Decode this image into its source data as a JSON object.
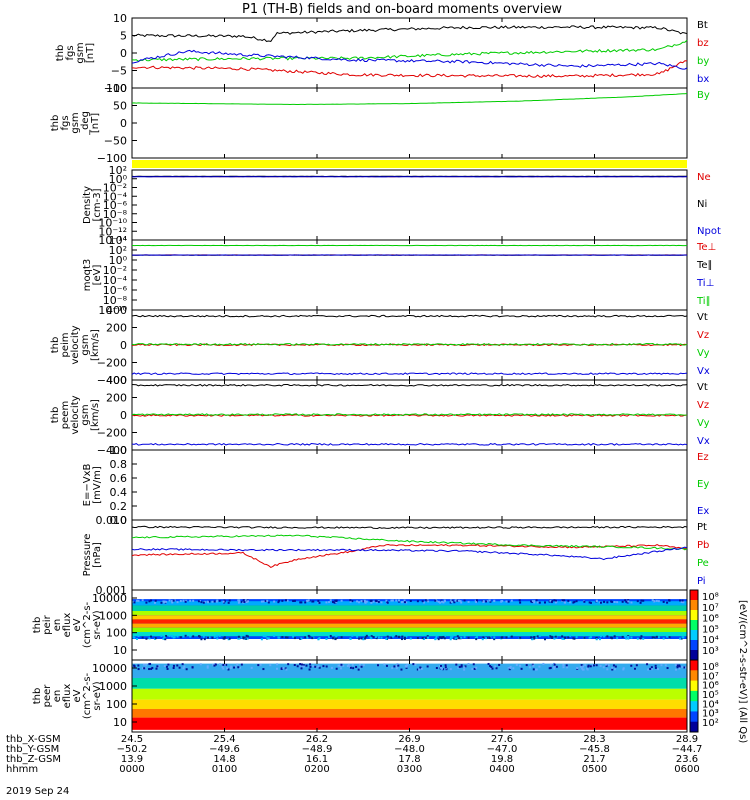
{
  "title": "P1 (TH-B) fields and on-board moments overview",
  "date_label": "2019 Sep 24",
  "colorbar_unit_label": "[eV/(cm^2-s-str-eV)] (All Qs)",
  "colors": {
    "black": "#000000",
    "red": "#e00000",
    "green": "#00cc00",
    "blue": "#0000dd",
    "yellow": "#ffff00"
  },
  "chart_data": [
    {
      "type": "line",
      "panel_id": "fgs",
      "ylabel": [
        "thb",
        "fgs",
        "gsm",
        "[nT]"
      ],
      "ylim": [
        -10,
        10
      ],
      "yticks": [
        "10",
        "5",
        "0",
        "−5",
        "−10"
      ],
      "series": [
        {
          "name": "Bt",
          "color": "black",
          "points": [
            [
              0,
              5
            ],
            [
              0.2,
              4.8
            ],
            [
              0.25,
              3.5
            ],
            [
              0.26,
              5.6
            ],
            [
              0.4,
              6.4
            ],
            [
              0.6,
              7.3
            ],
            [
              0.8,
              7.4
            ],
            [
              0.95,
              7.2
            ],
            [
              1,
              5.3
            ]
          ]
        },
        {
          "name": "bz",
          "color": "red",
          "points": [
            [
              0,
              -4
            ],
            [
              0.2,
              -4.5
            ],
            [
              0.4,
              -6.2
            ],
            [
              0.6,
              -6.5
            ],
            [
              0.8,
              -6.6
            ],
            [
              0.95,
              -6
            ],
            [
              1,
              -2
            ]
          ]
        },
        {
          "name": "by",
          "color": "green",
          "points": [
            [
              0,
              -2
            ],
            [
              0.2,
              -1.6
            ],
            [
              0.4,
              -1.5
            ],
            [
              0.6,
              -0.3
            ],
            [
              0.8,
              0.5
            ],
            [
              0.95,
              1
            ],
            [
              1,
              3.5
            ]
          ]
        },
        {
          "name": "bx",
          "color": "blue",
          "points": [
            [
              0,
              -2.5
            ],
            [
              0.1,
              0.5
            ],
            [
              0.2,
              -0.5
            ],
            [
              0.4,
              -2
            ],
            [
              0.6,
              -2.5
            ],
            [
              0.8,
              -3.8
            ],
            [
              0.95,
              -3
            ],
            [
              1,
              -4.5
            ]
          ]
        }
      ],
      "legend_position": "right"
    },
    {
      "type": "line",
      "panel_id": "fgs_deg",
      "ylabel": [
        "thb",
        "fgs",
        "gsm",
        "_deg",
        "[nT]"
      ],
      "ylim": [
        -125,
        100
      ],
      "yticks": [
        "100",
        "50",
        "0",
        "−50",
        "−100"
      ],
      "series": [
        {
          "name": "By",
          "color": "green",
          "points": [
            [
              0,
              52
            ],
            [
              0.3,
              47
            ],
            [
              0.5,
              50
            ],
            [
              0.7,
              58
            ],
            [
              0.9,
              72
            ],
            [
              1,
              82
            ]
          ]
        }
      ],
      "legend_position": "right"
    },
    {
      "type": "bar",
      "panel_id": "flag",
      "color": "yellow"
    },
    {
      "type": "line",
      "panel_id": "density",
      "ylabel": [
        "Density",
        "[cm-3]"
      ],
      "ylim_log": [
        -14,
        2
      ],
      "yticks": [
        "10²",
        "10⁰",
        "10⁻²",
        "10⁻⁴",
        "10⁻⁶",
        "10⁻⁸",
        "10⁻¹⁰",
        "10⁻¹²",
        "10⁻¹⁴"
      ],
      "series": [
        {
          "name": "Ne",
          "color": "red",
          "value_log": 0.5
        },
        {
          "name": "Ni",
          "color": "black",
          "value_log": 0.55
        },
        {
          "name": "Npot",
          "color": "blue",
          "value_log": 0.45
        }
      ],
      "legend_position": "right"
    },
    {
      "type": "line",
      "panel_id": "moqt3",
      "ylabel": [
        "moqt3",
        "[eV]"
      ],
      "ylim_log": [
        -10,
        4
      ],
      "yticks": [
        "10⁴",
        "10²",
        "10⁰",
        "10⁻²",
        "10⁻⁴",
        "10⁻⁶",
        "10⁻⁸",
        "10⁻¹⁰"
      ],
      "series": [
        {
          "name": "Te⊥",
          "color": "red",
          "value_log": 1.0
        },
        {
          "name": "Te∥",
          "color": "black",
          "value_log": 0.97
        },
        {
          "name": "Ti⊥",
          "color": "blue",
          "value_log": 0.99
        },
        {
          "name": "Ti∥",
          "color": "green",
          "value_log": 2.9
        }
      ],
      "legend_position": "right"
    },
    {
      "type": "line",
      "panel_id": "peim_velocity",
      "ylabel": [
        "thb",
        "peim",
        "velocity",
        "gsm",
        "[km/s]"
      ],
      "ylim": [
        -400,
        400
      ],
      "yticks": [
        "400",
        "200",
        "0",
        "−200",
        "−400"
      ],
      "series": [
        {
          "name": "Vt",
          "color": "black",
          "value": 330
        },
        {
          "name": "Vz",
          "color": "red",
          "value": 2
        },
        {
          "name": "Vy",
          "color": "green",
          "value": 8
        },
        {
          "name": "Vx",
          "color": "blue",
          "value": -328
        }
      ],
      "legend_position": "right"
    },
    {
      "type": "line",
      "panel_id": "peem_velocity",
      "ylabel": [
        "thb",
        "peem",
        "velocity",
        "gsm",
        "[km/s]"
      ],
      "ylim": [
        -400,
        400
      ],
      "yticks": [
        "400",
        "200",
        "0",
        "−200",
        "−400"
      ],
      "series": [
        {
          "name": "Vt",
          "color": "black",
          "value": 340
        },
        {
          "name": "Vz",
          "color": "red",
          "value": -5
        },
        {
          "name": "Vy",
          "color": "green",
          "value": 5
        },
        {
          "name": "Vx",
          "color": "blue",
          "value": -335
        }
      ],
      "legend_position": "right"
    },
    {
      "type": "line",
      "panel_id": "efield",
      "ylabel": [
        "E=−VxB",
        "[mV/m]"
      ],
      "ylim": [
        0,
        1
      ],
      "yticks": [
        "1.0",
        "0.8",
        "0.6",
        "0.4",
        "0.2",
        "0.0"
      ],
      "series": [
        {
          "name": "Ez",
          "color": "red"
        },
        {
          "name": "Ey",
          "color": "green"
        },
        {
          "name": "Ex",
          "color": "blue"
        }
      ],
      "legend_position": "right"
    },
    {
      "type": "line",
      "panel_id": "pressure",
      "ylabel": [
        "Pressure",
        "[nPa]"
      ],
      "ylim_log": [
        -3,
        -1.2
      ],
      "yticks": [
        "0.010",
        "0.001"
      ],
      "series": [
        {
          "name": "Pt",
          "color": "black",
          "points": [
            [
              0,
              -1.38
            ],
            [
              0.5,
              -1.4
            ],
            [
              1,
              -1.38
            ]
          ]
        },
        {
          "name": "Pb",
          "color": "red",
          "points": [
            [
              0,
              -2.1
            ],
            [
              0.2,
              -2.05
            ],
            [
              0.25,
              -2.4
            ],
            [
              0.3,
              -2.2
            ],
            [
              0.4,
              -2.0
            ],
            [
              0.45,
              -1.85
            ],
            [
              0.6,
              -1.85
            ],
            [
              0.8,
              -1.9
            ],
            [
              0.95,
              -1.85
            ],
            [
              1,
              -1.95
            ]
          ]
        },
        {
          "name": "Pe",
          "color": "green",
          "points": [
            [
              0,
              -1.65
            ],
            [
              0.3,
              -1.6
            ],
            [
              0.5,
              -1.75
            ],
            [
              0.7,
              -1.85
            ],
            [
              0.9,
              -1.9
            ],
            [
              1,
              -1.95
            ]
          ]
        },
        {
          "name": "Pi",
          "color": "blue",
          "points": [
            [
              0,
              -1.95
            ],
            [
              0.2,
              -1.97
            ],
            [
              0.4,
              -1.97
            ],
            [
              0.6,
              -2.0
            ],
            [
              0.75,
              -2.1
            ],
            [
              0.85,
              -2.2
            ],
            [
              0.95,
              -2.0
            ],
            [
              1,
              -1.9
            ]
          ]
        }
      ],
      "legend_position": "right"
    },
    {
      "type": "heatmap",
      "panel_id": "peir_eflux",
      "ylabel": [
        "thb",
        "peir",
        "en",
        "eflux",
        "eV",
        "(cm^2-s-",
        "sr-eV)"
      ],
      "yticks": [
        "10000",
        "1000",
        "100",
        "10"
      ],
      "colorbar_ticks": [
        "10⁸",
        "10⁷",
        "10⁶",
        "10⁵",
        "10⁴",
        "10³"
      ]
    },
    {
      "type": "heatmap",
      "panel_id": "peer_eflux",
      "ylabel": [
        "thb",
        "peer",
        "en",
        "eflux",
        "eV",
        "(cm^2-s-",
        "sr-eV)"
      ],
      "yticks": [
        "10000",
        "1000",
        "100",
        "10"
      ],
      "colorbar_ticks": [
        "10⁸",
        "10⁷",
        "10⁶",
        "10⁵",
        "10⁴",
        "10³",
        "10²"
      ]
    }
  ],
  "x_axis": {
    "row_labels": [
      "thb_X-GSM",
      "thb_Y-GSM",
      "thb_Z-GSM",
      "hhmm"
    ],
    "columns": [
      [
        "24.5",
        "−50.2",
        "13.9",
        "0000"
      ],
      [
        "25.4",
        "−49.6",
        "14.8",
        "0100"
      ],
      [
        "26.2",
        "−48.9",
        "16.1",
        "0200"
      ],
      [
        "26.9",
        "−48.0",
        "17.8",
        "0300"
      ],
      [
        "27.6",
        "−47.0",
        "19.8",
        "0400"
      ],
      [
        "28.3",
        "−45.8",
        "21.7",
        "0500"
      ],
      [
        "28.9",
        "−44.7",
        "23.6",
        "0600"
      ]
    ]
  }
}
